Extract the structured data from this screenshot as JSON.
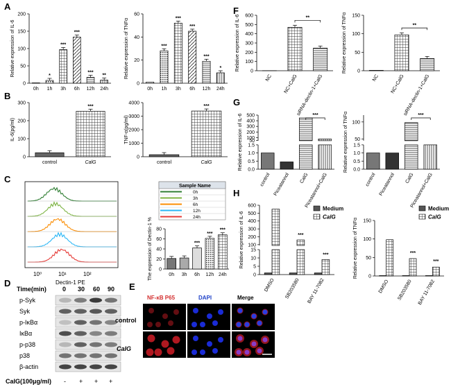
{
  "figure": {
    "panel_letters": [
      "A",
      "B",
      "C",
      "D",
      "E",
      "F",
      "G",
      "H"
    ],
    "sig_labels": {
      "s1": "*",
      "s2": "**",
      "s3": "***"
    },
    "cytometry_x_label": "Dectin-1 PE",
    "cytometry_legend_header": "Sample Name",
    "cytometry_samples": [
      "0h",
      "3h",
      "6h",
      "12h",
      "24h"
    ],
    "cytometry_sample_colors": [
      "#2e7d32",
      "#7cb342",
      "#fb8c00",
      "#29b6f6",
      "#e53935"
    ],
    "cytometry_ticks": [
      "10⁰",
      "10¹",
      "10²"
    ],
    "western": {
      "time_label": "Time(min)",
      "times": [
        "0",
        "30",
        "60",
        "90"
      ],
      "proteins": [
        "p-Syk",
        "Syk",
        "p-IκBα",
        "IκBα",
        "p-p38",
        "p38",
        "β-actin"
      ],
      "treatment_label": "CaIG(100μg/ml)",
      "treatment_signs": [
        "-",
        "+",
        "+",
        "+"
      ]
    },
    "immunofluorescence": {
      "columns": [
        "NF-κB P65",
        "DAPI",
        "Merge"
      ],
      "rows": [
        "control",
        "CaIG"
      ]
    },
    "legend_h": {
      "medium": "Medium",
      "calg": "CalG"
    }
  },
  "chart_data": [
    {
      "id": "A1",
      "type": "bar",
      "ylabel": "Relative expression of IL-6",
      "categories": [
        "0h",
        "1h",
        "3h",
        "6h",
        "12h",
        "24h"
      ],
      "values": [
        1,
        8,
        97,
        133,
        17,
        9
      ],
      "ylim": [
        0,
        200
      ],
      "yticks": [
        0,
        50,
        100,
        150,
        200
      ],
      "sig": [
        "",
        "*",
        "***",
        "***",
        "***",
        "**"
      ]
    },
    {
      "id": "A2",
      "type": "bar",
      "ylabel": "Relative expression of TNFα",
      "categories": [
        "0h",
        "1h",
        "3h",
        "6h",
        "12h",
        "24h"
      ],
      "values": [
        1,
        28,
        52,
        45,
        19,
        9
      ],
      "ylim": [
        0,
        60
      ],
      "yticks": [
        0,
        20,
        40,
        60
      ],
      "sig": [
        "",
        "***",
        "***",
        "***",
        "***",
        "*"
      ]
    },
    {
      "id": "B1",
      "type": "bar",
      "ylabel": "IL-6(pg/ml)",
      "categories": [
        "control",
        "CalG"
      ],
      "values": [
        22,
        252
      ],
      "ylim": [
        0,
        300
      ],
      "yticks": [
        0,
        100,
        200,
        300
      ],
      "sig": [
        "",
        "***"
      ]
    },
    {
      "id": "B2",
      "type": "bar",
      "ylabel": "TNF-α(pg/ml)",
      "categories": [
        "control",
        "CalG"
      ],
      "values": [
        150,
        3380
      ],
      "ylim": [
        0,
        4000
      ],
      "yticks": [
        0,
        1000,
        2000,
        3000,
        4000
      ],
      "sig": [
        "",
        "***"
      ]
    },
    {
      "id": "C",
      "type": "bar",
      "ylabel": "The expression of Dectin-1 %",
      "categories": [
        "0h",
        "3h",
        "6h",
        "12h",
        "24h"
      ],
      "values": [
        21,
        22,
        42,
        61,
        68
      ],
      "ylim": [
        0,
        80
      ],
      "yticks": [
        0,
        20,
        40,
        60,
        80
      ],
      "sig": [
        "",
        "",
        "***",
        "***",
        "***"
      ]
    },
    {
      "id": "F1",
      "type": "bar",
      "ylabel": "Relative expression of IL-6",
      "categories": [
        "NC",
        "NC+CalG",
        "siRNA-dectin-1+CalG"
      ],
      "values": [
        1,
        470,
        245
      ],
      "ylim": [
        0,
        600
      ],
      "yticks": [
        0,
        100,
        200,
        300,
        400,
        500,
        600
      ],
      "bracket": [
        1,
        2,
        "**"
      ]
    },
    {
      "id": "F2",
      "type": "bar",
      "ylabel": "Relative expression of TNFα",
      "categories": [
        "NC",
        "NC+CalG",
        "siRNA-dectin-1+CalG"
      ],
      "values": [
        1,
        97,
        33
      ],
      "ylim": [
        0,
        150
      ],
      "yticks": [
        0,
        50,
        100,
        150
      ],
      "bracket": [
        1,
        2,
        "**"
      ]
    },
    {
      "id": "G1",
      "type": "bar",
      "ylabel": "Relative expression of IL-6",
      "categories": [
        "control",
        "Piceatannol",
        "CalG",
        "Piceatannol+CalG"
      ],
      "values": [
        1,
        0.45,
        450,
        75
      ],
      "ylim_low": [
        0,
        1.5
      ],
      "ylim_high": [
        0,
        500
      ],
      "yticks_low": [
        0.0,
        0.5,
        1.0,
        1.5
      ],
      "yticks_high": [
        50,
        100,
        200,
        300,
        400,
        500
      ],
      "bracket": [
        2,
        3,
        "***"
      ]
    },
    {
      "id": "G2",
      "type": "bar",
      "ylabel": "Relative expression of TNFα",
      "categories": [
        "control",
        "Piceatannol",
        "CalG",
        "Piceatannol+CalG"
      ],
      "values": [
        1,
        1,
        98,
        45
      ],
      "ylim_low": [
        0,
        1.5
      ],
      "ylim_high": [
        0,
        120
      ],
      "yticks_low": [
        0.0,
        0.5,
        1.0,
        1.5
      ],
      "yticks_high": [
        50,
        100
      ],
      "bracket": [
        2,
        3,
        "***"
      ]
    },
    {
      "id": "H1",
      "type": "bar",
      "ylabel": "Relative expression of IL-6",
      "categories": [
        "DMSO",
        "SB203580",
        "BAY 11-7082"
      ],
      "series": [
        {
          "name": "Medium",
          "values": [
            1,
            1,
            1
          ]
        },
        {
          "name": "CalG",
          "values": [
            550,
            160,
            9
          ]
        }
      ],
      "yticks_low": [
        0,
        5,
        10,
        15
      ],
      "yticks_high": [
        100,
        200,
        300,
        400,
        500,
        600
      ],
      "sig": [
        "",
        "***",
        "***"
      ]
    },
    {
      "id": "H2",
      "type": "bar",
      "ylabel": "Relative expression of TNFα",
      "categories": [
        "DMSO",
        "SB203580",
        "BAY 11-7082"
      ],
      "series": [
        {
          "name": "Medium",
          "values": [
            1,
            1,
            1
          ]
        },
        {
          "name": "CalG",
          "values": [
            98,
            47,
            24
          ]
        }
      ],
      "ylim": [
        0,
        150
      ],
      "yticks": [
        0,
        50,
        100,
        150
      ],
      "sig": [
        "",
        "***",
        "***"
      ]
    }
  ]
}
